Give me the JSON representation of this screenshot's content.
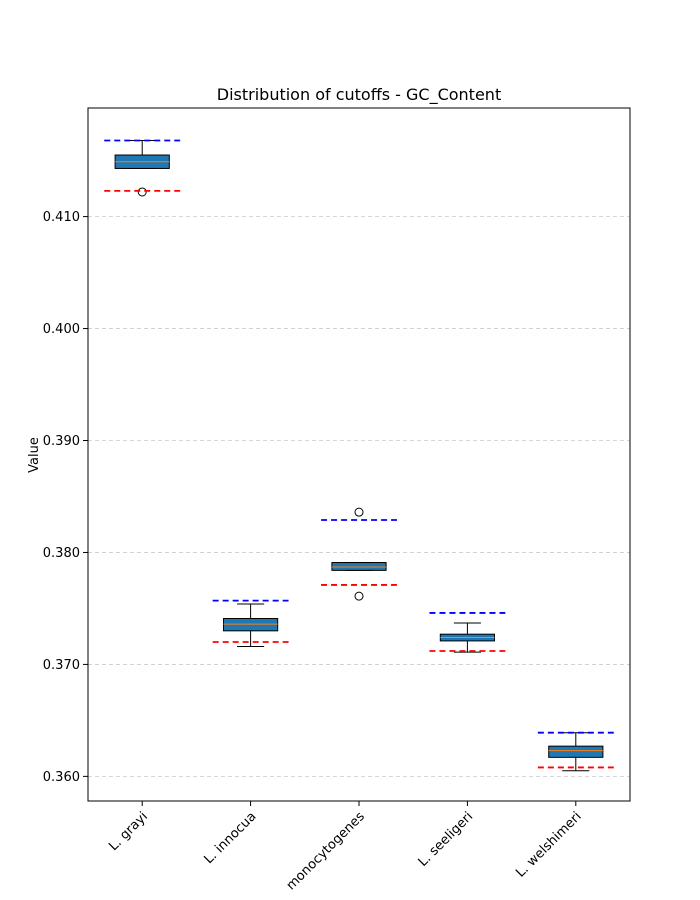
{
  "chart_data": {
    "type": "boxplot",
    "title": "Distribution of cutoffs - GC_Content",
    "xlabel": "",
    "ylabel": "Value",
    "ylim": [
      0.3578,
      0.4197
    ],
    "yticks": [
      0.36,
      0.37,
      0.38,
      0.39,
      0.4,
      0.41
    ],
    "ytick_labels": [
      "0.360",
      "0.370",
      "0.380",
      "0.390",
      "0.400",
      "0.410"
    ],
    "grid": "y, dashed",
    "categories": [
      "L. grayi",
      "L. innocua",
      "monocytogenes",
      "L. seeligeri",
      "L. welshimeri"
    ],
    "boxes": [
      {
        "category": "L. grayi",
        "whisker_low": 0.4143,
        "q1": 0.4143,
        "median": 0.4149,
        "q3": 0.4155,
        "whisker_high": 0.4168,
        "outliers": [
          0.4122
        ],
        "upper_cutoff": 0.4168,
        "lower_cutoff": 0.4123
      },
      {
        "category": "L. innocua",
        "whisker_low": 0.3716,
        "q1": 0.373,
        "median": 0.3736,
        "q3": 0.3741,
        "whisker_high": 0.3754,
        "outliers": [],
        "upper_cutoff": 0.3757,
        "lower_cutoff": 0.372
      },
      {
        "category": "monocytogenes",
        "whisker_low": 0.3784,
        "q1": 0.3784,
        "median": 0.3787,
        "q3": 0.3791,
        "whisker_high": 0.3791,
        "outliers": [
          0.3836,
          0.3761
        ],
        "upper_cutoff": 0.3829,
        "lower_cutoff": 0.3771
      },
      {
        "category": "L. seeligeri",
        "whisker_low": 0.3711,
        "q1": 0.3721,
        "median": 0.3724,
        "q3": 0.3727,
        "whisker_high": 0.3737,
        "outliers": [],
        "upper_cutoff": 0.3746,
        "lower_cutoff": 0.3712
      },
      {
        "category": "L. welshimeri",
        "whisker_low": 0.3605,
        "q1": 0.3617,
        "median": 0.3623,
        "q3": 0.3627,
        "whisker_high": 0.3639,
        "outliers": [],
        "upper_cutoff": 0.3639,
        "lower_cutoff": 0.3608
      }
    ],
    "colors": {
      "box_fill": "#1f77b4",
      "median": "#ff7f0e",
      "upper_cutoff": "#0000ff",
      "lower_cutoff": "#ff0000",
      "grid": "#cccccc"
    }
  }
}
